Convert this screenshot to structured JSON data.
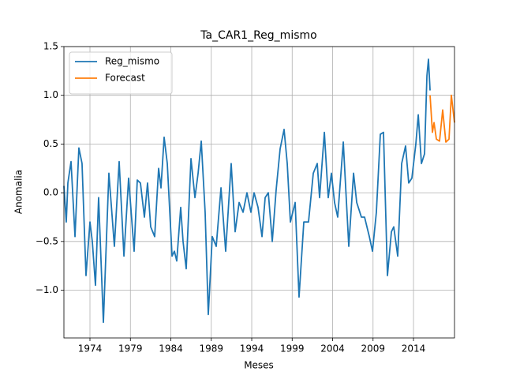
{
  "chart_data": {
    "type": "line",
    "title": "Ta_CAR1_Reg_mismo",
    "x_label": "Meses",
    "y_label": "Anomalia",
    "xlim": [
      1970.78,
      2019.07
    ],
    "ylim": [
      -1.49,
      1.5
    ],
    "xticks": [
      1974,
      1979,
      1984,
      1989,
      1994,
      1999,
      2004,
      2009,
      2014
    ],
    "yticks": [
      {
        "value": -1.0,
        "label": "−1.0"
      },
      {
        "value": -0.5,
        "label": "−0.5"
      },
      {
        "value": 0,
        "label": "0.0"
      },
      {
        "value": 0.5,
        "label": "0.5"
      },
      {
        "value": 1.0,
        "label": "1.0"
      },
      {
        "value": 1.5,
        "label": "1.5"
      }
    ],
    "grid": true,
    "legend": "upper left",
    "series": [
      {
        "name": "Reg_mismo",
        "color": "#1f77b4",
        "x": [
          1970.78,
          1971.07,
          1971.27,
          1971.66,
          1972.15,
          1972.63,
          1973.02,
          1973.51,
          1974.0,
          1974.29,
          1974.68,
          1975.07,
          1975.66,
          1976.34,
          1977.02,
          1977.61,
          1978.2,
          1978.78,
          1979.46,
          1979.85,
          1980.24,
          1980.73,
          1981.12,
          1981.51,
          1982.0,
          1982.49,
          1982.78,
          1983.17,
          1983.56,
          1984.15,
          1984.44,
          1984.73,
          1985.22,
          1985.51,
          1985.9,
          1986.49,
          1986.98,
          1987.37,
          1987.76,
          1988.24,
          1988.63,
          1989.12,
          1989.61,
          1990.2,
          1990.78,
          1991.46,
          1991.95,
          1992.44,
          1992.93,
          1993.41,
          1993.9,
          1994.29,
          1994.78,
          1995.27,
          1995.66,
          1996.05,
          1996.54,
          1997.02,
          1997.51,
          1998.0,
          1998.39,
          1998.78,
          1999.37,
          1999.85,
          2000.44,
          2001.02,
          2001.61,
          2002.1,
          2002.39,
          2002.98,
          2003.46,
          2003.85,
          2004.24,
          2004.63,
          2005.32,
          2006.0,
          2006.59,
          2006.98,
          2007.56,
          2007.95,
          2008.54,
          2008.93,
          2009.41,
          2009.9,
          2010.29,
          2010.78,
          2011.27,
          2011.56,
          2012.05,
          2012.54,
          2013.02,
          2013.41,
          2013.8,
          2014.29,
          2014.59,
          2014.98,
          2015.37,
          2015.66,
          2015.85,
          2016.05
        ],
        "values": [
          0.07,
          -0.3,
          0.1,
          0.32,
          -0.45,
          0.46,
          0.3,
          -0.85,
          -0.3,
          -0.5,
          -0.95,
          -0.05,
          -1.33,
          0.2,
          -0.55,
          0.32,
          -0.65,
          0.15,
          -0.6,
          0.13,
          0.1,
          -0.25,
          0.1,
          -0.35,
          -0.45,
          0.25,
          0.05,
          0.57,
          0.3,
          -0.65,
          -0.6,
          -0.7,
          -0.15,
          -0.5,
          -0.78,
          0.35,
          -0.05,
          0.2,
          0.53,
          -0.2,
          -1.25,
          -0.45,
          -0.55,
          0.05,
          -0.6,
          0.3,
          -0.4,
          -0.1,
          -0.2,
          0.0,
          -0.2,
          0.0,
          -0.15,
          -0.45,
          -0.05,
          0.0,
          -0.5,
          0.03,
          0.45,
          0.65,
          0.3,
          -0.3,
          -0.1,
          -1.07,
          -0.3,
          -0.3,
          0.2,
          0.3,
          -0.05,
          0.62,
          -0.05,
          0.2,
          -0.1,
          -0.25,
          0.52,
          -0.55,
          0.2,
          -0.1,
          -0.25,
          -0.25,
          -0.45,
          -0.6,
          -0.2,
          0.6,
          0.62,
          -0.85,
          -0.4,
          -0.35,
          -0.65,
          0.3,
          0.48,
          0.1,
          0.15,
          0.5,
          0.8,
          0.3,
          0.4,
          1.2,
          1.37,
          1.05
        ]
      },
      {
        "name": "Forecast",
        "color": "#ff7f0e",
        "x": [
          2016.05,
          2016.34,
          2016.54,
          2016.83,
          2017.22,
          2017.61,
          2018.0,
          2018.39,
          2018.68,
          2019.07
        ],
        "values": [
          1.0,
          0.62,
          0.72,
          0.55,
          0.53,
          0.85,
          0.52,
          0.55,
          1.0,
          0.72
        ]
      }
    ]
  }
}
